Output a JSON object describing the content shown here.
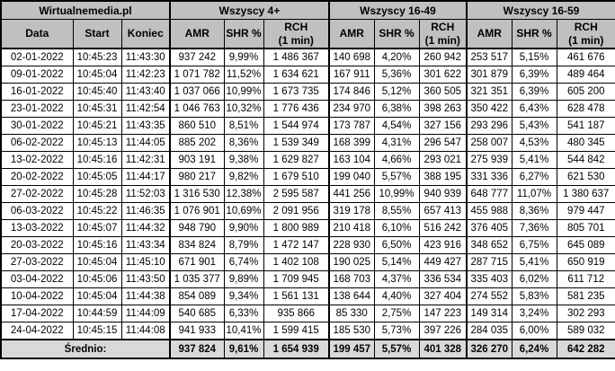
{
  "colors": {
    "header_bg": "#c0c0c0",
    "average_bg": "#d9d9d9",
    "border": "#000000",
    "cell_bg": "#ffffff",
    "text": "#000000"
  },
  "table": {
    "corner_title": "Wirtualnemedia.pl",
    "groups": [
      {
        "label": "Wszyscy 4+"
      },
      {
        "label": "Wszyscy 16-49"
      },
      {
        "label": "Wszyscy 16-59"
      }
    ],
    "columns": [
      "Data",
      "Start",
      "Koniec",
      "AMR",
      "SHR %",
      "RCH\n(1 min)",
      "AMR",
      "SHR %",
      "RCH\n(1 min)",
      "AMR",
      "SHR %",
      "RCH\n(1 min)"
    ],
    "column_keys": [
      "data",
      "start",
      "koniec",
      "amr-4plus",
      "shr-4plus",
      "rch-4plus",
      "amr-16-49",
      "shr-16-49",
      "rch-16-49",
      "amr-16-59",
      "shr-16-59",
      "rch-16-59"
    ],
    "rows": [
      [
        "02-01-2022",
        "10:45:23",
        "11:43:30",
        "937 242",
        "9,99%",
        "1 486 367",
        "140 698",
        "4,20%",
        "260 942",
        "253 517",
        "5,15%",
        "461 676"
      ],
      [
        "09-01-2022",
        "10:45:04",
        "11:42:23",
        "1 071 782",
        "11,52%",
        "1 634 621",
        "167 911",
        "5,36%",
        "301 622",
        "301 879",
        "6,39%",
        "489 464"
      ],
      [
        "16-01-2022",
        "10:45:40",
        "11:43:40",
        "1 037 066",
        "10,99%",
        "1 673 735",
        "174 846",
        "5,12%",
        "360 505",
        "321 351",
        "6,39%",
        "605 200"
      ],
      [
        "23-01-2022",
        "10:45:31",
        "11:42:54",
        "1 046 763",
        "10,32%",
        "1 776 436",
        "234 970",
        "6,38%",
        "398 263",
        "350 422",
        "6,43%",
        "628 478"
      ],
      [
        "30-01-2022",
        "10:45:21",
        "11:43:35",
        "860 510",
        "8,51%",
        "1 544 974",
        "173 787",
        "4,54%",
        "327 156",
        "293 296",
        "5,43%",
        "541 187"
      ],
      [
        "06-02-2022",
        "10:45:13",
        "11:44:05",
        "885 202",
        "8,36%",
        "1 539 349",
        "168 399",
        "4,31%",
        "296 547",
        "258 007",
        "4,53%",
        "480 345"
      ],
      [
        "13-02-2022",
        "10:45:16",
        "11:42:31",
        "903 191",
        "9,38%",
        "1 629 827",
        "163 104",
        "4,66%",
        "293 021",
        "275 939",
        "5,41%",
        "544 842"
      ],
      [
        "20-02-2022",
        "10:45:05",
        "11:44:17",
        "980 217",
        "9,82%",
        "1 679 510",
        "199 040",
        "5,57%",
        "388 195",
        "331 336",
        "6,27%",
        "621 530"
      ],
      [
        "27-02-2022",
        "10:45:28",
        "11:52:03",
        "1 316 530",
        "12,38%",
        "2 595 587",
        "441 256",
        "10,99%",
        "940 939",
        "648 777",
        "11,07%",
        "1 380 637"
      ],
      [
        "06-03-2022",
        "10:45:22",
        "11:46:35",
        "1 076 901",
        "10,69%",
        "2 091 956",
        "319 178",
        "8,55%",
        "657 413",
        "455 988",
        "8,36%",
        "979 447"
      ],
      [
        "13-03-2022",
        "10:45:07",
        "11:44:32",
        "948 790",
        "9,90%",
        "1 800 989",
        "210 418",
        "6,10%",
        "516 242",
        "376 405",
        "7,36%",
        "805 701"
      ],
      [
        "20-03-2022",
        "10:45:16",
        "11:43:34",
        "834 824",
        "8,79%",
        "1 472 147",
        "228 930",
        "6,50%",
        "423 916",
        "348 652",
        "6,75%",
        "645 089"
      ],
      [
        "27-03-2022",
        "10:45:04",
        "11:45:10",
        "671 901",
        "6,74%",
        "1 402 108",
        "190 025",
        "5,14%",
        "449 427",
        "287 715",
        "5,41%",
        "650 919"
      ],
      [
        "03-04-2022",
        "10:45:06",
        "11:43:50",
        "1 035 377",
        "9,89%",
        "1 709 945",
        "168 703",
        "4,37%",
        "336 534",
        "335 403",
        "6,02%",
        "611 712"
      ],
      [
        "10-04-2022",
        "10:45:04",
        "11:44:38",
        "854 089",
        "9,34%",
        "1 561 131",
        "138 644",
        "4,40%",
        "327 404",
        "274 552",
        "5,83%",
        "581 235"
      ],
      [
        "17-04-2022",
        "10:44:59",
        "11:44:09",
        "540 685",
        "6,33%",
        "935 866",
        "85 330",
        "2,75%",
        "147 223",
        "149 314",
        "3,24%",
        "302 293"
      ],
      [
        "24-04-2022",
        "10:45:15",
        "11:44:08",
        "941 933",
        "10,41%",
        "1 599 415",
        "185 530",
        "5,73%",
        "397 226",
        "284 035",
        "6,00%",
        "589 032"
      ]
    ],
    "average_label": "Średnio:",
    "average": [
      "937 824",
      "9,61%",
      "1 654 939",
      "199 457",
      "5,57%",
      "401 328",
      "326 270",
      "6,24%",
      "642 282"
    ]
  }
}
